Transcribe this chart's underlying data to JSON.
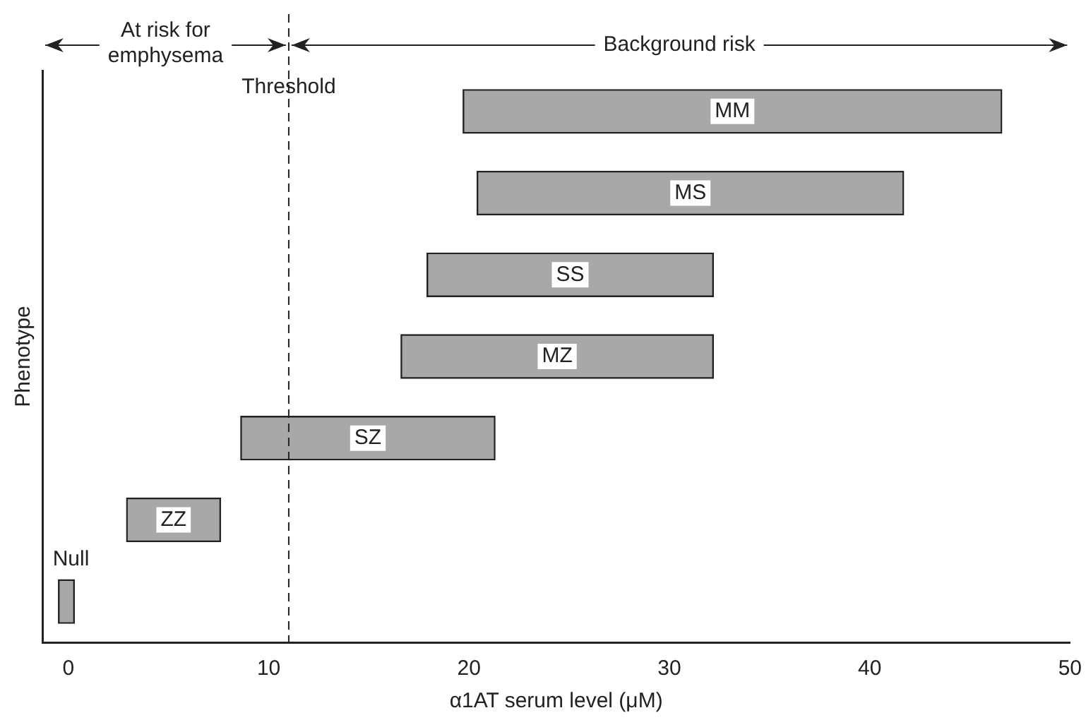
{
  "chart_data": {
    "type": "bar",
    "orientation": "horizontal",
    "xlabel": "α1AT serum level (μM)",
    "ylabel": "Phenotype",
    "categories": [
      "MM",
      "MS",
      "SS",
      "MZ",
      "SZ",
      "ZZ",
      "Null"
    ],
    "base": [
      19.7,
      20.4,
      17.9,
      16.6,
      8.6,
      2.9,
      -0.5
    ],
    "values": [
      26.9,
      21.3,
      14.3,
      15.6,
      12.7,
      4.7,
      0.8
    ],
    "color": "#a8a8a8",
    "xlim": [
      -1.3,
      50
    ],
    "xticks": [
      0,
      10,
      20,
      30,
      40,
      50
    ],
    "ref_lines": [
      {
        "axis": "x",
        "value": 11,
        "label": "Threshold",
        "line_style": "dashed"
      }
    ],
    "annotations": [
      "At risk for emphysema",
      "Background risk"
    ],
    "tick_labels": "x",
    "grid": false,
    "legend": false
  }
}
